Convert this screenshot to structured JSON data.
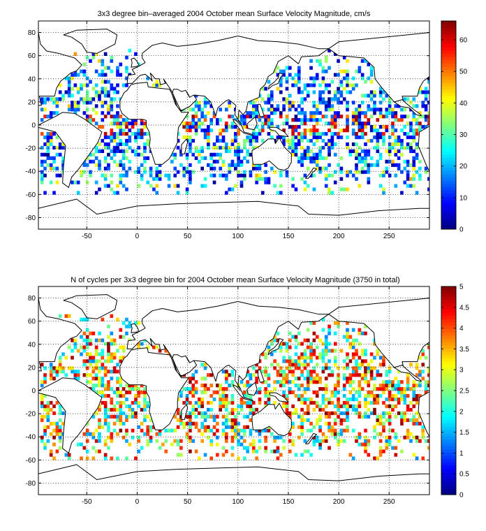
{
  "chart_data": [
    {
      "type": "heatmap",
      "title": "3x3 degree bin–averaged 2004 October mean Surface Velocity Magnitude, cm/s",
      "xticks": [
        -50,
        0,
        50,
        100,
        150,
        200,
        250
      ],
      "yticks": [
        -80,
        -60,
        -40,
        -20,
        0,
        20,
        40,
        60,
        80
      ],
      "xlim": [
        -98,
        290
      ],
      "ylim": [
        -90,
        90
      ],
      "grid": true,
      "colorbar": {
        "range": [
          0,
          66
        ],
        "ticks": [
          0,
          10,
          20,
          30,
          40,
          50,
          60
        ],
        "colormap": "jet"
      },
      "bin_size_deg": 3,
      "seed": 11
    },
    {
      "type": "heatmap",
      "title": "N of cycles per 3x3 degree bin for 2004 October mean Surface Velocity Magnitude (3750 in total)",
      "xticks": [
        -50,
        0,
        50,
        100,
        150,
        200,
        250
      ],
      "yticks": [
        -80,
        -60,
        -40,
        -20,
        0,
        20,
        40,
        60,
        80
      ],
      "xlim": [
        -98,
        290
      ],
      "ylim": [
        -90,
        90
      ],
      "grid": true,
      "colorbar": {
        "range": [
          0,
          5
        ],
        "ticks": [
          0,
          0.5,
          1,
          1.5,
          2,
          2.5,
          3,
          3.5,
          4,
          4.5,
          5
        ],
        "colormap": "jet"
      },
      "bin_size_deg": 3,
      "seed": 29
    }
  ]
}
